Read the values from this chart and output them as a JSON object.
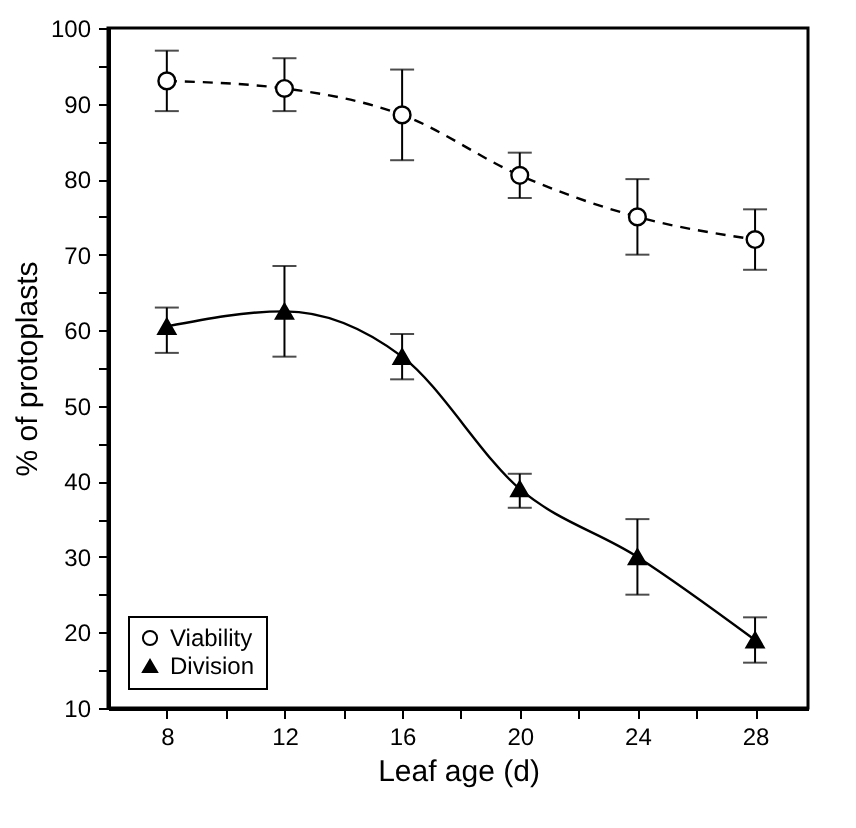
{
  "chart_data": {
    "type": "line",
    "xlabel": "Leaf age (d)",
    "ylabel": "% of protoplasts",
    "x": [
      8,
      12,
      16,
      20,
      24,
      28
    ],
    "xlim": [
      6,
      29.8
    ],
    "xticks": [
      8,
      {
        "value": 10,
        "label": null
      },
      12,
      {
        "value": 14,
        "label": null
      },
      16,
      {
        "value": 18,
        "label": null
      },
      20,
      {
        "value": 22,
        "label": null
      },
      24,
      {
        "value": 26,
        "label": null
      },
      28
    ],
    "ylim": [
      10,
      100
    ],
    "yticks": [
      10,
      {
        "value": 15,
        "label": null
      },
      20,
      {
        "value": 25,
        "label": null
      },
      30,
      {
        "value": 35,
        "label": null
      },
      40,
      {
        "value": 45,
        "label": null
      },
      50,
      {
        "value": 55,
        "label": null
      },
      60,
      {
        "value": 65,
        "label": null
      },
      70,
      {
        "value": 75,
        "label": null
      },
      80,
      {
        "value": 85,
        "label": null
      },
      90,
      {
        "value": 95,
        "label": null
      },
      100
    ],
    "series": [
      {
        "name": "Viability",
        "color": "#000000",
        "marker": "circle",
        "line_style": "dashed",
        "values": [
          93,
          92,
          88.5,
          80.5,
          75,
          72
        ],
        "errors": [
          [
            89,
            97
          ],
          [
            89,
            96
          ],
          [
            82.5,
            94.5
          ],
          [
            77.5,
            83.5
          ],
          [
            70,
            80
          ],
          [
            68,
            76
          ]
        ]
      },
      {
        "name": "Division",
        "color": "#000000",
        "marker": "triangle",
        "line_style": "solid",
        "values": [
          60.5,
          62.5,
          56.5,
          39,
          30,
          19
        ],
        "errors": [
          [
            57,
            63
          ],
          [
            56.5,
            68.5
          ],
          [
            53.5,
            59.5
          ],
          [
            36.5,
            41
          ],
          [
            25,
            35
          ],
          [
            16,
            22
          ]
        ]
      }
    ],
    "legend": "bottom left"
  }
}
